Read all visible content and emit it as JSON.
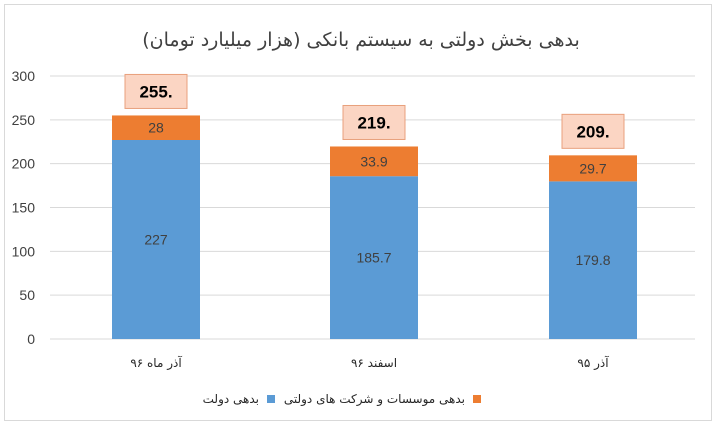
{
  "chart_data": {
    "type": "bar",
    "stacked": true,
    "title": "بدهی بخش دولتی به سیستم بانکی (هزار میلیارد تومان)",
    "categories": [
      "آذر ماه ۹۶",
      "اسفند ۹۶",
      "آذر ۹۵"
    ],
    "series": [
      {
        "name": "بدهی دولت",
        "values": [
          227,
          185.7,
          179.8
        ],
        "labels": [
          "227",
          "185.7",
          "179.8"
        ],
        "color": "#5b9bd5"
      },
      {
        "name": "بدهی موسسات و شرکت های دولتی",
        "values": [
          28,
          33.9,
          29.7
        ],
        "labels": [
          "28",
          "33.9",
          "29.7"
        ],
        "color": "#ed7d31"
      }
    ],
    "totals": [
      "255.",
      "219.",
      "209."
    ],
    "ylim": [
      0,
      300
    ],
    "yticks": [
      0,
      50,
      100,
      150,
      200,
      250,
      300
    ],
    "grid": true,
    "legend_position": "bottom",
    "total_box_color": "#fbd5c3",
    "total_box_border": "#e8a07c"
  }
}
